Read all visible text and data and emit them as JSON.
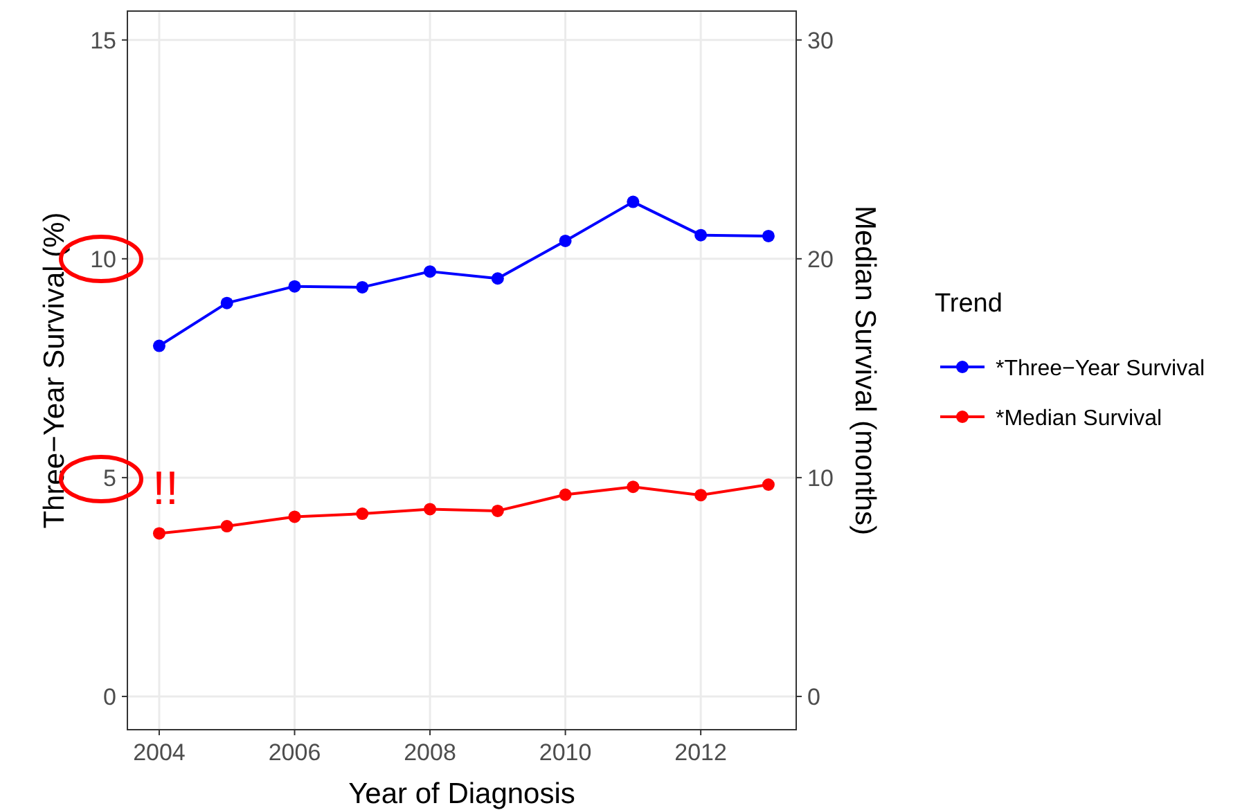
{
  "chart_data": {
    "type": "line",
    "xlabel": "Year of Diagnosis",
    "ylabel": "Three−Year Survival (%)",
    "y2label": "Median Survival (months)",
    "legend_title": "Trend",
    "x": [
      2004,
      2005,
      2006,
      2007,
      2008,
      2009,
      2010,
      2011,
      2012,
      2013
    ],
    "series": [
      {
        "name": "*Three−Year Survival",
        "color": "#0000ff",
        "values": [
          8.01,
          8.99,
          9.37,
          9.35,
          9.71,
          9.55,
          10.41,
          11.3,
          10.54,
          10.52
        ]
      },
      {
        "name": "*Median Survival",
        "color": "#ff0000",
        "axis": "y2",
        "values": [
          7.45,
          7.78,
          8.21,
          8.35,
          8.56,
          8.48,
          9.22,
          9.58,
          9.2,
          9.68
        ]
      }
    ],
    "xlim": [
      2003.53,
      2013.41
    ],
    "xticks": [
      2004,
      2006,
      2008,
      2010,
      2012
    ],
    "ylim": [
      -0.76,
      15.66
    ],
    "yticks": [
      0,
      5,
      10,
      15
    ],
    "y2lim": [
      -1.52,
      31.32
    ],
    "y2ticks": [
      0,
      10,
      20,
      30
    ],
    "annotations": [
      "!!"
    ],
    "grid": true,
    "legend": "right",
    "marker": "circle",
    "line_style": "solid"
  }
}
